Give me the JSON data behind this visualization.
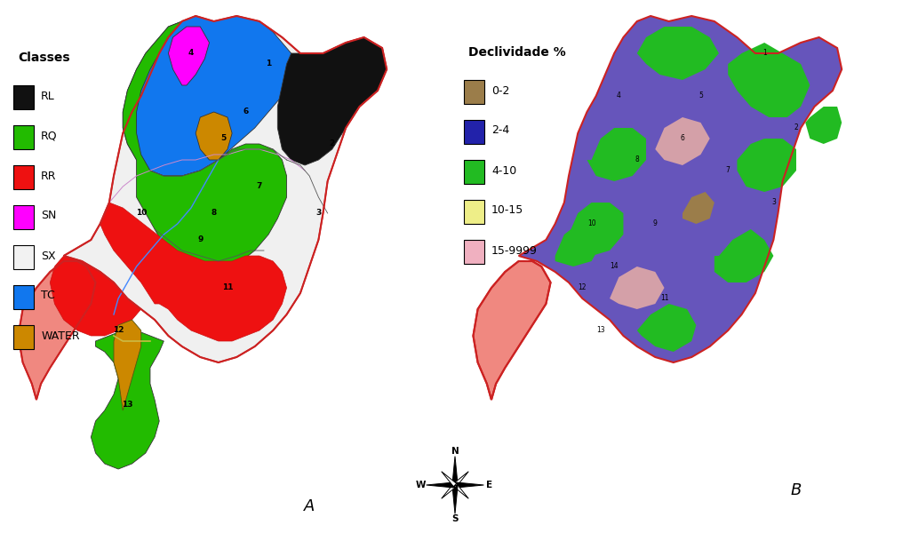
{
  "background_color": "#ffffff",
  "fig_width": 10.24,
  "fig_height": 6.0,
  "panel_A_label": "A",
  "panel_B_label": "B",
  "legend_A_title": "Classes",
  "legend_A_items": [
    {
      "label": "RL",
      "color": "#111111"
    },
    {
      "label": "RQ",
      "color": "#22bb00"
    },
    {
      "label": "RR",
      "color": "#ee1111"
    },
    {
      "label": "SN",
      "color": "#ff00ff"
    },
    {
      "label": "SX",
      "color": "#f2f2f2"
    },
    {
      "label": "TC",
      "color": "#1177ee"
    },
    {
      "label": "WATER",
      "color": "#cc8800"
    }
  ],
  "legend_B_title": "Declividade %",
  "legend_B_items": [
    {
      "label": "0-2",
      "color": "#9b7d4a"
    },
    {
      "label": "2-4",
      "color": "#2222aa"
    },
    {
      "label": "4-10",
      "color": "#22bb22"
    },
    {
      "label": "10-15",
      "color": "#eeee88"
    },
    {
      "label": "15-9999",
      "color": "#f0b0c0"
    }
  ],
  "label_fontsize": 13,
  "legend_fontsize": 9,
  "legend_title_fontsize": 10
}
